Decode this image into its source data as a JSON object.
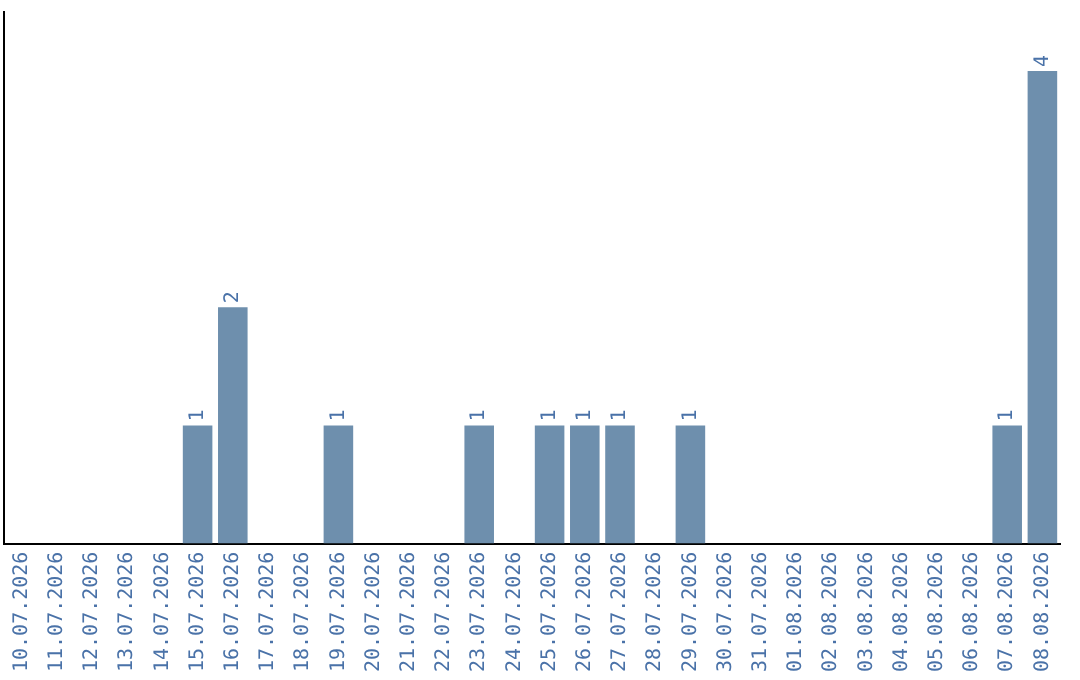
{
  "chart_data": {
    "type": "bar",
    "categories": [
      "10.07.2026",
      "11.07.2026",
      "12.07.2026",
      "13.07.2026",
      "14.07.2026",
      "15.07.2026",
      "16.07.2026",
      "17.07.2026",
      "18.07.2026",
      "19.07.2026",
      "20.07.2026",
      "21.07.2026",
      "22.07.2026",
      "23.07.2026",
      "24.07.2026",
      "25.07.2026",
      "26.07.2026",
      "27.07.2026",
      "28.07.2026",
      "29.07.2026",
      "30.07.2026",
      "31.07.2026",
      "01.08.2026",
      "02.08.2026",
      "03.08.2026",
      "04.08.2026",
      "05.08.2026",
      "06.08.2026",
      "07.08.2026",
      "08.08.2026"
    ],
    "values": [
      0,
      0,
      0,
      0,
      0,
      1,
      2,
      0,
      0,
      1,
      0,
      0,
      0,
      1,
      0,
      1,
      1,
      1,
      0,
      1,
      0,
      0,
      0,
      0,
      0,
      0,
      0,
      0,
      1,
      4
    ],
    "value_labels": [
      null,
      null,
      null,
      null,
      null,
      "1",
      "2",
      null,
      null,
      "1",
      null,
      null,
      null,
      "1",
      null,
      "1",
      "1",
      "1",
      null,
      "1",
      null,
      null,
      null,
      null,
      null,
      null,
      null,
      null,
      "1",
      "4"
    ],
    "color": "#6e8fad",
    "grid": false,
    "legend": false,
    "tick_labels": "x"
  }
}
